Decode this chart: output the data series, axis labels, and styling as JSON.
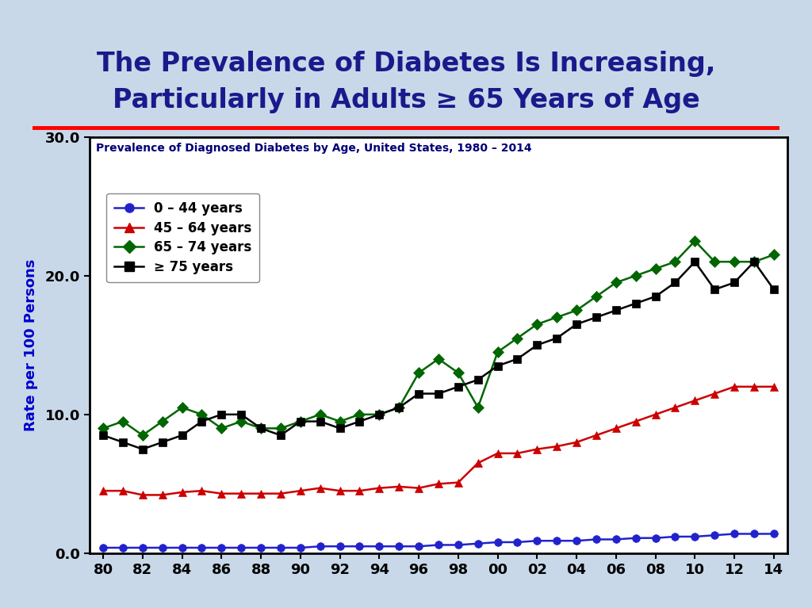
{
  "title_line1": "The Prevalence of Diabetes Is Increasing,",
  "title_line2": "Particularly in Adults ≥ 65 Years of Age",
  "title_color": "#1a1a8c",
  "subtitle": "Prevalence of Diagnosed Diabetes by Age, United States, 1980 – 2014",
  "ylabel": "Rate per 100 Persons",
  "background_color": "#c8d8e8",
  "plot_bg": "#ffffff",
  "years": [
    1980,
    1981,
    1982,
    1983,
    1984,
    1985,
    1986,
    1987,
    1988,
    1989,
    1990,
    1991,
    1992,
    1993,
    1994,
    1995,
    1996,
    1997,
    1998,
    1999,
    2000,
    2001,
    2002,
    2003,
    2004,
    2005,
    2006,
    2007,
    2008,
    2009,
    2010,
    2011,
    2012,
    2013,
    2014
  ],
  "blue_0_44": [
    0.4,
    0.4,
    0.4,
    0.4,
    0.4,
    0.4,
    0.4,
    0.4,
    0.4,
    0.4,
    0.4,
    0.5,
    0.5,
    0.5,
    0.5,
    0.5,
    0.5,
    0.6,
    0.6,
    0.7,
    0.8,
    0.8,
    0.9,
    0.9,
    0.9,
    1.0,
    1.0,
    1.1,
    1.1,
    1.2,
    1.2,
    1.3,
    1.4,
    1.4,
    1.4
  ],
  "red_45_64": [
    4.5,
    4.5,
    4.2,
    4.2,
    4.4,
    4.5,
    4.3,
    4.3,
    4.3,
    4.3,
    4.5,
    4.7,
    4.5,
    4.5,
    4.7,
    4.8,
    4.7,
    5.0,
    5.1,
    6.5,
    7.2,
    7.2,
    7.5,
    7.7,
    8.0,
    8.5,
    9.0,
    9.5,
    10.0,
    10.5,
    11.0,
    11.5,
    12.0,
    12.0,
    12.0
  ],
  "green_65_74": [
    9.0,
    9.5,
    8.5,
    9.5,
    10.5,
    10.0,
    9.0,
    9.5,
    9.0,
    9.0,
    9.5,
    10.0,
    9.5,
    10.0,
    10.0,
    10.5,
    13.0,
    14.0,
    13.0,
    10.5,
    14.5,
    15.5,
    16.5,
    17.0,
    17.5,
    18.5,
    19.5,
    20.0,
    20.5,
    21.0,
    22.5,
    21.0,
    21.0,
    21.0,
    21.5
  ],
  "black_75plus": [
    8.5,
    8.0,
    7.5,
    8.0,
    8.5,
    9.5,
    10.0,
    10.0,
    9.0,
    8.5,
    9.5,
    9.5,
    9.0,
    9.5,
    10.0,
    10.5,
    11.5,
    11.5,
    12.0,
    12.5,
    13.5,
    14.0,
    15.0,
    15.5,
    16.5,
    17.0,
    17.5,
    18.0,
    18.5,
    19.5,
    21.0,
    19.0,
    19.5,
    21.0,
    19.0
  ],
  "ylim": [
    0,
    30
  ],
  "yticks": [
    0.0,
    10.0,
    20.0,
    30.0
  ],
  "xtick_labels": [
    "80",
    "82",
    "84",
    "86",
    "88",
    "90",
    "92",
    "94",
    "96",
    "98",
    "00",
    "02",
    "04",
    "06",
    "08",
    "10",
    "12",
    "14"
  ],
  "legend_labels": [
    "0 – 44 years",
    "45 – 64 years",
    "65 – 74 years",
    "≥ 75 years"
  ],
  "legend_colors": [
    "#2222cc",
    "#cc0000",
    "#006600",
    "#000000"
  ],
  "title_fontsize": 24,
  "subtitle_fontsize": 10,
  "tick_fontsize": 13,
  "legend_fontsize": 12,
  "ylabel_fontsize": 13
}
